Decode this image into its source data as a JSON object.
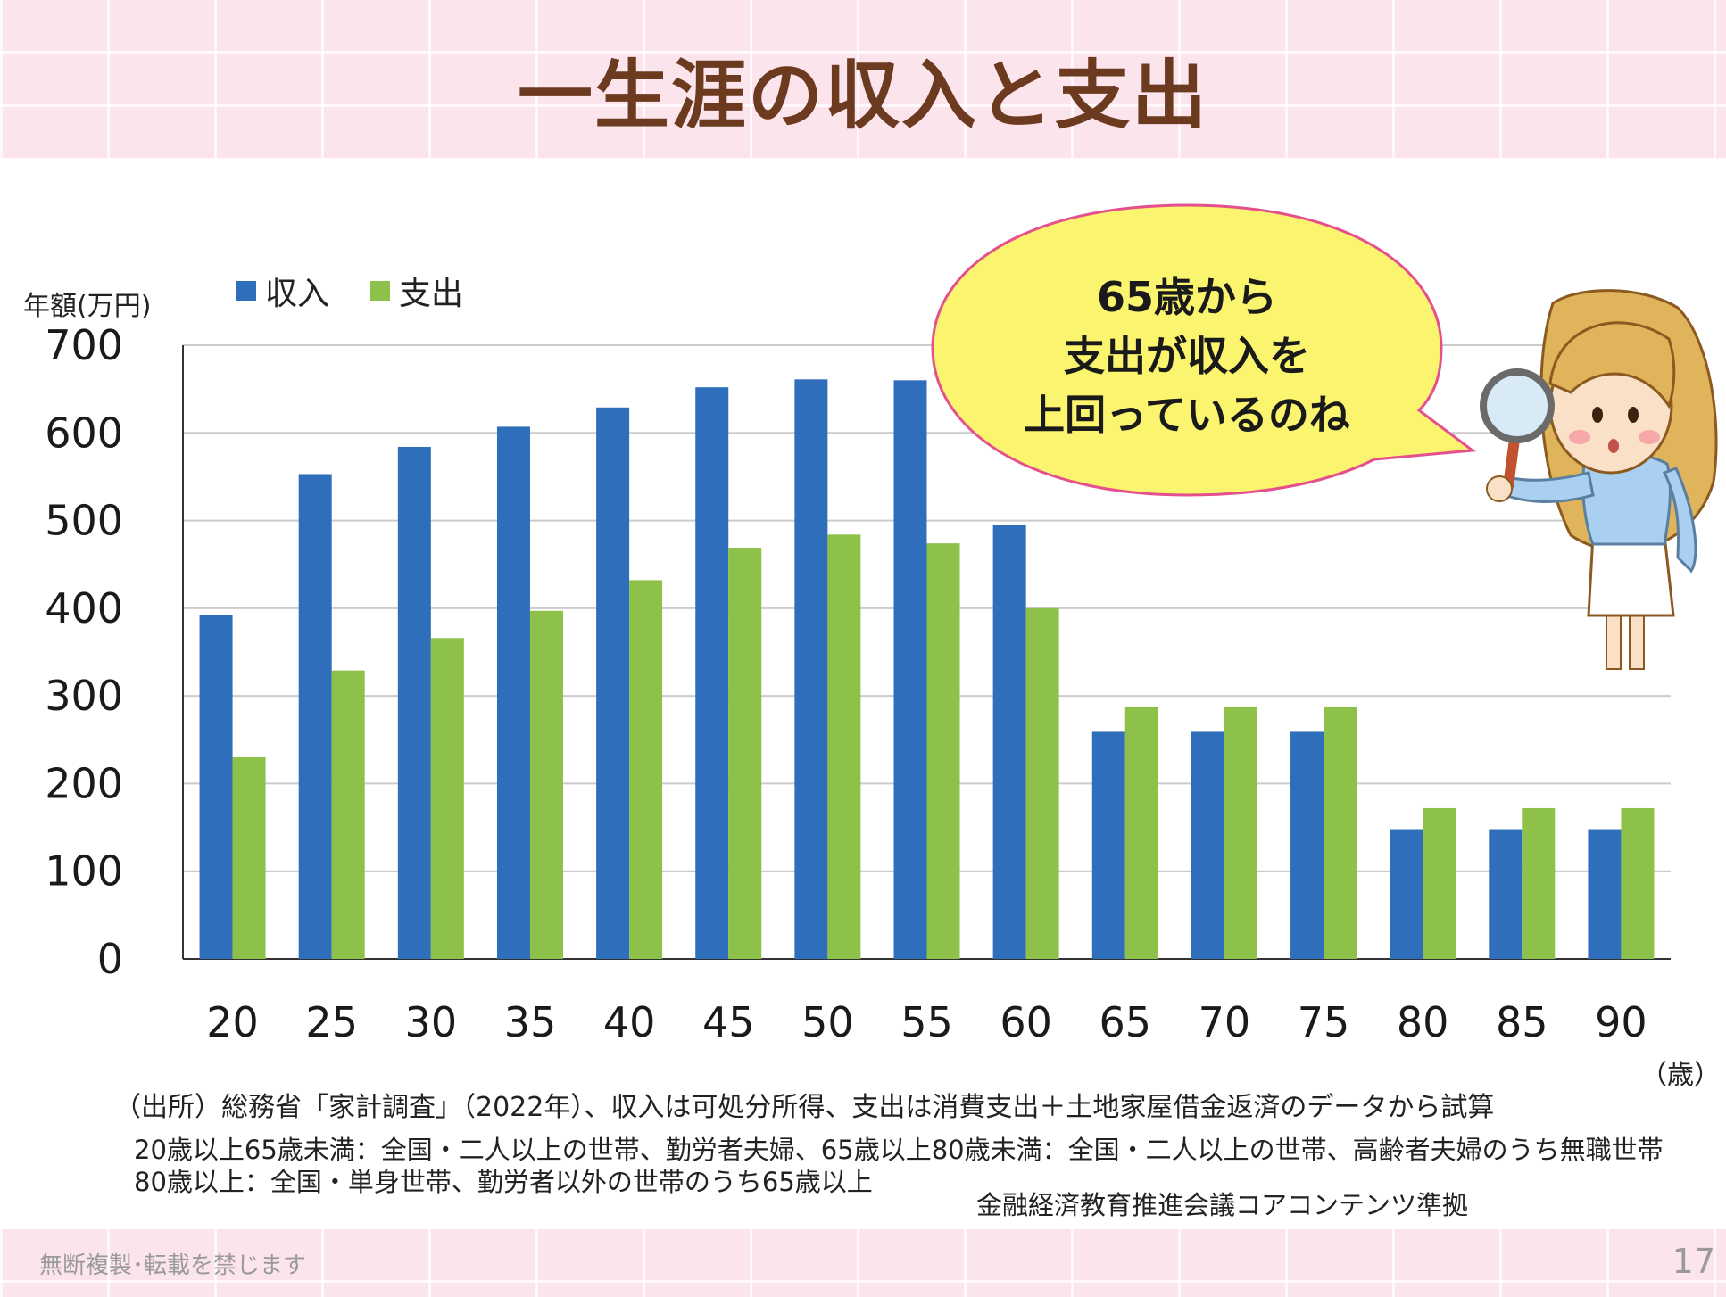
{
  "title": "一生涯の収入と支出",
  "footer": {
    "note": "無断複製･転載を禁じます",
    "page": "17"
  },
  "legend": {
    "income": "収入",
    "expense": "支出"
  },
  "y_unit": "年額(万円)",
  "x_unit": "（歳）",
  "bubble": {
    "line1": "65歳から",
    "line2": "支出が収入を",
    "line3": "上回っているのね"
  },
  "source": "（出所）総務省「家計調査」（2022年）、収入は可処分所得、支出は消費支出＋土地家屋借金返済のデータから試算",
  "note1": "20歳以上65歳未満：全国・二人以上の世帯、勤労者夫婦、65歳以上80歳未満：全国・二人以上の世帯、高齢者夫婦のうち無職世帯",
  "note2": "80歳以上：全国・単身世帯、勤労者以外の世帯のうち65歳以上",
  "core": "金融経済教育推進会議コアコンテンツ準拠",
  "colors": {
    "income": "#2f6eba",
    "expense": "#8dc14a",
    "grid": "#cccccc",
    "bubble": "#fbf46e",
    "bubble_border": "#e4508e"
  },
  "chart_data": {
    "type": "bar",
    "categories": [
      "20",
      "25",
      "30",
      "35",
      "40",
      "45",
      "50",
      "55",
      "60",
      "65",
      "70",
      "75",
      "80",
      "85",
      "90"
    ],
    "series": [
      {
        "name": "収入",
        "values": [
          392,
          553,
          584,
          607,
          629,
          652,
          661,
          660,
          495,
          259,
          259,
          259,
          148,
          148,
          148
        ]
      },
      {
        "name": "支出",
        "values": [
          230,
          329,
          366,
          397,
          432,
          469,
          484,
          474,
          400,
          287,
          287,
          287,
          172,
          172,
          172
        ]
      }
    ],
    "yticks": [
      0,
      100,
      200,
      300,
      400,
      500,
      600,
      700
    ],
    "ylim": [
      0,
      700
    ],
    "ylabel": "年額(万円)",
    "xlabel": "（歳）",
    "grid": true,
    "legend": "top-left"
  }
}
